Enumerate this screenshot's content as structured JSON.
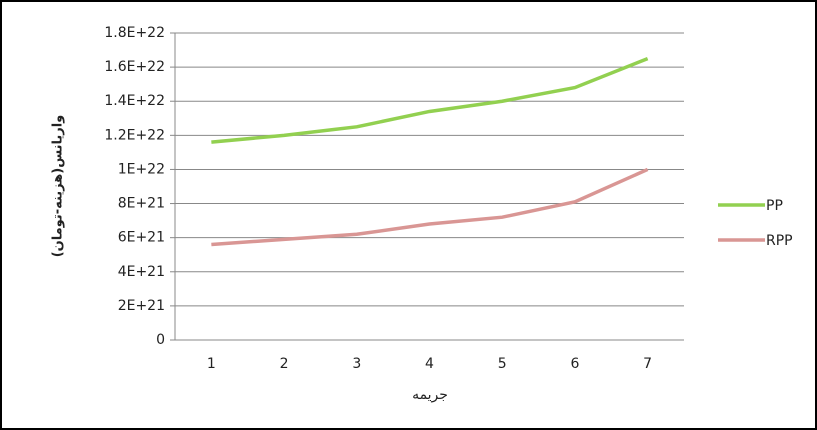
{
  "chart_data": {
    "type": "line",
    "x_label": "جریمه",
    "y_label": "واریانس(هزینه-تومان)",
    "categories": [
      "1",
      "2",
      "3",
      "4",
      "5",
      "6",
      "7"
    ],
    "series": [
      {
        "name": "PP",
        "color": "#92d050",
        "values": [
          1.16e+22,
          1.2e+22,
          1.25e+22,
          1.34e+22,
          1.4e+22,
          1.48e+22,
          1.65e+22
        ]
      },
      {
        "name": "RPP",
        "color": "#d99694",
        "values": [
          5.6e+21,
          5.9e+21,
          6.2e+21,
          6.8e+21,
          7.2e+21,
          8.1e+21,
          1e+22
        ]
      }
    ],
    "ylim": [
      0,
      1.8e+22
    ],
    "yticks": [
      0,
      {
        "value": 2e+21,
        "label": "2E+21"
      },
      {
        "value": 4e+21,
        "label": "4E+21"
      },
      {
        "value": 6e+21,
        "label": "6E+21"
      },
      {
        "value": 8e+21,
        "label": "8E+21"
      },
      {
        "value": 1e+22,
        "label": "1E+22"
      },
      {
        "value": 1.2e+22,
        "label": "1.2E+22"
      },
      {
        "value": 1.4e+22,
        "label": "1.4E+22"
      },
      {
        "value": 1.6e+22,
        "label": "1.6E+22"
      },
      {
        "value": 1.8e+22,
        "label": "1.8E+22"
      }
    ],
    "grid": true,
    "legend": "right"
  }
}
